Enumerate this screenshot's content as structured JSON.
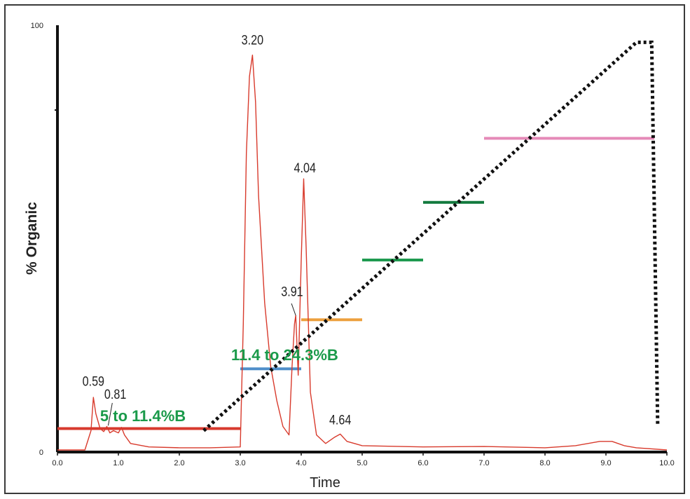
{
  "chart_data": {
    "type": "line",
    "xlabel": "Time",
    "ylabel": "% Organic",
    "xlim": [
      0,
      10
    ],
    "ylim": [
      0,
      100
    ],
    "x_ticks": [
      "0.0",
      "1.0",
      "2.0",
      "3.0",
      "4.0",
      "5.0",
      "6.0",
      "7.0",
      "8.0",
      "9.0",
      "10.0"
    ],
    "y_ticks": [
      "0",
      "100"
    ],
    "grid": false,
    "colors": {
      "chromatogram": "#d83a2c",
      "gradient": "#111111",
      "annotation_text": "#1a9a4a"
    },
    "chromatogram": {
      "x": [
        0.0,
        0.45,
        0.55,
        0.59,
        0.63,
        0.7,
        0.76,
        0.81,
        0.86,
        0.92,
        1.0,
        1.05,
        1.1,
        1.2,
        1.5,
        2.0,
        2.5,
        3.0,
        3.05,
        3.1,
        3.15,
        3.2,
        3.25,
        3.3,
        3.4,
        3.5,
        3.6,
        3.7,
        3.8,
        3.85,
        3.89,
        3.91,
        3.95,
        4.0,
        4.04,
        4.08,
        4.15,
        4.25,
        4.4,
        4.55,
        4.64,
        4.75,
        5.0,
        6.0,
        7.0,
        8.0,
        8.5,
        8.9,
        9.1,
        9.3,
        9.5,
        10.0
      ],
      "y": [
        0.5,
        0.5,
        5.0,
        12.8,
        9.0,
        5.5,
        4.8,
        6.0,
        4.5,
        5.0,
        4.5,
        5.8,
        4.0,
        2.0,
        1.2,
        1.0,
        1.0,
        1.2,
        30.0,
        70.0,
        88.0,
        93.0,
        82.0,
        60.0,
        35.0,
        20.0,
        12.0,
        6.0,
        4.0,
        20.0,
        30.0,
        32.0,
        18.0,
        45.0,
        64.0,
        48.0,
        14.0,
        4.0,
        2.0,
        3.5,
        4.2,
        2.5,
        1.5,
        1.2,
        1.3,
        1.0,
        1.5,
        2.5,
        2.5,
        1.5,
        1.0,
        0.5
      ]
    },
    "gradient_profile": {
      "x": [
        2.4,
        9.5,
        9.75,
        9.85
      ],
      "y": [
        5.0,
        96.0,
        96.0,
        6.0
      ]
    },
    "segments": [
      {
        "x": [
          0.0,
          3.0
        ],
        "y": 5.5,
        "color": "#d73a2e"
      },
      {
        "x": [
          3.0,
          4.0
        ],
        "y": 19.5,
        "color": "#4f8fca"
      },
      {
        "x": [
          4.0,
          5.0
        ],
        "y": 31.0,
        "color": "#eda03e"
      },
      {
        "x": [
          5.0,
          6.0
        ],
        "y": 45.0,
        "color": "#1e9a50"
      },
      {
        "x": [
          6.0,
          7.0
        ],
        "y": 58.5,
        "color": "#127a3e"
      },
      {
        "x": [
          7.0,
          10.0
        ],
        "y": 73.5,
        "color": "#e58ab8"
      }
    ],
    "peak_labels": [
      {
        "text": "0.59",
        "x": 0.59,
        "y": 15.5
      },
      {
        "text": "0.81",
        "x": 0.95,
        "y": 12.5
      },
      {
        "text": "3.20",
        "x": 3.2,
        "y": 95.5
      },
      {
        "text": "3.91",
        "x": 3.85,
        "y": 36.5
      },
      {
        "text": "4.04",
        "x": 4.06,
        "y": 65.5
      },
      {
        "text": "4.64",
        "x": 4.64,
        "y": 6.5
      }
    ],
    "annotations": [
      {
        "text": "5 to 11.4%B",
        "x": 0.7,
        "y": 7.2
      },
      {
        "text": "11.4 to 24.3%B",
        "x": 2.85,
        "y": 21.5
      }
    ]
  }
}
